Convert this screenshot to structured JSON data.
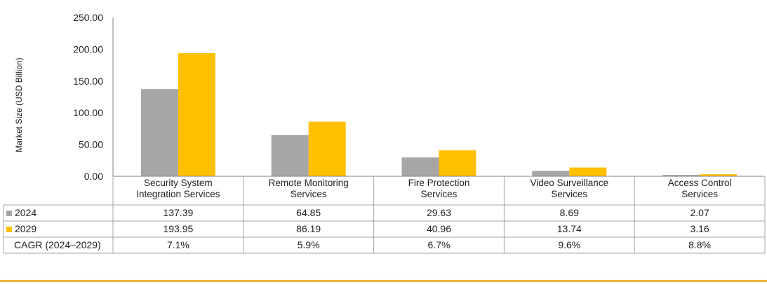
{
  "chart_data": {
    "type": "bar",
    "ylabel": "Market Size (USD Billion)",
    "ylim": [
      0,
      250
    ],
    "yticks": [
      "250.00",
      "200.00",
      "150.00",
      "100.00",
      "50.00",
      "0.00"
    ],
    "categories": [
      [
        "Security System",
        "Integration Services"
      ],
      [
        "Remote Monitoring",
        "Services"
      ],
      [
        "Fire Protection",
        "Services"
      ],
      [
        "Video Surveillance",
        "Services"
      ],
      [
        "Access Control",
        "Services"
      ]
    ],
    "series": [
      {
        "name": "2024",
        "color": "#A6A6A6",
        "values": [
          137.39,
          64.85,
          29.63,
          8.69,
          2.07
        ],
        "labels": [
          "137.39",
          "64.85",
          "29.63",
          "8.69",
          "2.07"
        ]
      },
      {
        "name": "2029",
        "color": "#FFC000",
        "values": [
          193.95,
          86.19,
          40.96,
          13.74,
          3.16
        ],
        "labels": [
          "193.95",
          "86.19",
          "40.96",
          "13.74",
          "3.16"
        ]
      }
    ],
    "cagr": {
      "label": "CAGR (2024–2029)",
      "values": [
        "7.1%",
        "5.9%",
        "6.7%",
        "9.6%",
        "8.8%"
      ]
    },
    "grid": false
  },
  "colors": {
    "axis": "#808080",
    "table_border": "#A6A6A6",
    "footer_rule": "#E8B53A"
  }
}
